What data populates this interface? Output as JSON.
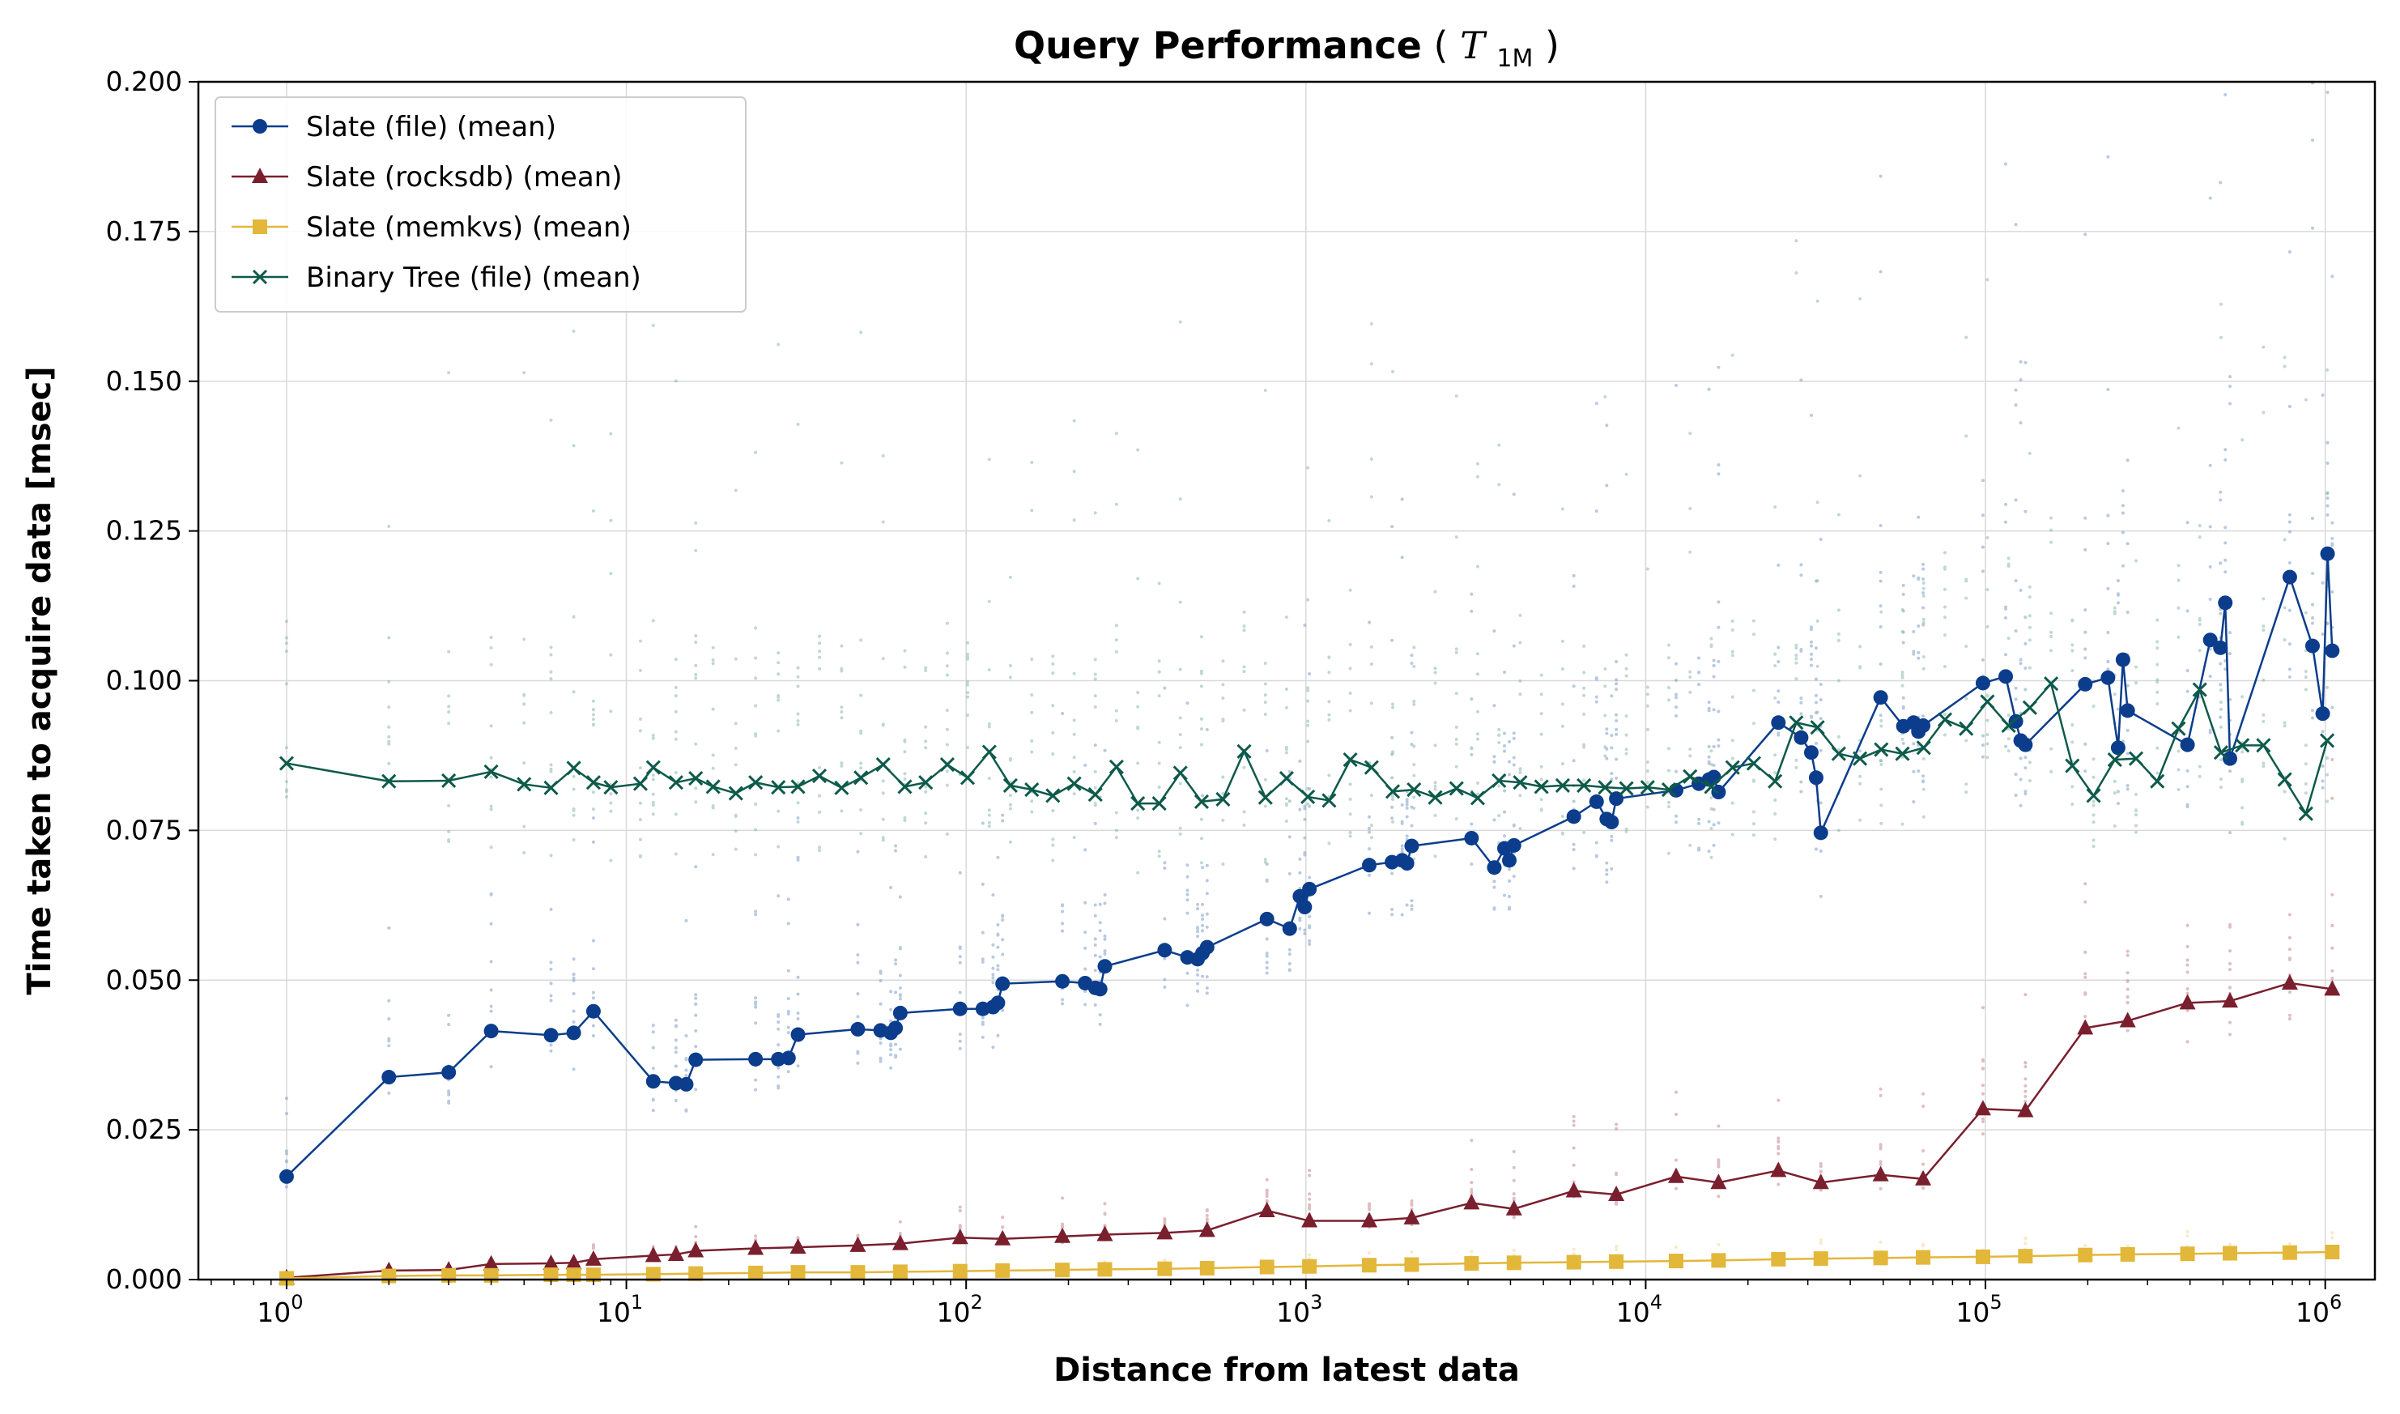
{
  "chart_data": {
    "type": "line",
    "title": "Query Performance",
    "title_math": "T",
    "title_math_sub": "1M",
    "xlabel": "Distance from latest data",
    "ylabel": "Time taken to acquire data [msec]",
    "xscale": "log",
    "xlim": [
      0.55,
      1400000
    ],
    "ylim": [
      0,
      0.2
    ],
    "x_tick_labels": [
      "10",
      "10",
      "10",
      "10",
      "10",
      "10",
      "10"
    ],
    "x_tick_exponents": [
      "0",
      "1",
      "2",
      "3",
      "4",
      "5",
      "6"
    ],
    "y_ticks": [
      "0.000",
      "0.025",
      "0.050",
      "0.075",
      "0.100",
      "0.125",
      "0.150",
      "0.175",
      "0.200"
    ],
    "grid": true,
    "legend_position": "top-left",
    "series": [
      {
        "name": "Slate (file) (mean)",
        "color": "#0b3d8c",
        "scatter_color": "#7f9fc8",
        "marker": "circle",
        "x": [
          1,
          2,
          3,
          4,
          6,
          7,
          8,
          12,
          14,
          15,
          16,
          24,
          28,
          30,
          32,
          48,
          56,
          60,
          62,
          64,
          96,
          112,
          120,
          124,
          128,
          192,
          224,
          240,
          248,
          256,
          384,
          448,
          480,
          496,
          512,
          768,
          896,
          960,
          992,
          1024,
          1536,
          1792,
          1920,
          1984,
          2048,
          3072,
          3584,
          3840,
          3968,
          4096,
          6144,
          7168,
          7680,
          7936,
          8192,
          12288,
          14336,
          15360,
          15872,
          16384,
          24576,
          28672,
          30720,
          31744,
          32768,
          49152,
          57344,
          61440,
          63488,
          65536,
          98304,
          114688,
          122880,
          126976,
          131072,
          196608,
          229376,
          245760,
          253952,
          262144,
          393216,
          458752,
          491520,
          507904,
          524288,
          786432,
          917504,
          983040,
          1015808,
          1048576
        ],
        "y": [
          0.0172,
          0.0338,
          0.0346,
          0.0415,
          0.0408,
          0.0412,
          0.0448,
          0.0331,
          0.0328,
          0.0326,
          0.0367,
          0.0368,
          0.0368,
          0.037,
          0.0409,
          0.0418,
          0.0416,
          0.0412,
          0.042,
          0.0445,
          0.0452,
          0.0452,
          0.0455,
          0.0462,
          0.0494,
          0.0498,
          0.0495,
          0.0487,
          0.0485,
          0.0523,
          0.055,
          0.0538,
          0.0535,
          0.0545,
          0.0555,
          0.0602,
          0.0586,
          0.064,
          0.0622,
          0.0652,
          0.0692,
          0.0697,
          0.07,
          0.0695,
          0.0724,
          0.0737,
          0.0688,
          0.072,
          0.07,
          0.0725,
          0.0773,
          0.0798,
          0.0769,
          0.0764,
          0.0803,
          0.0817,
          0.0828,
          0.0835,
          0.0839,
          0.0814,
          0.093,
          0.0905,
          0.088,
          0.0838,
          0.0746,
          0.0972,
          0.0924,
          0.093,
          0.0915,
          0.0925,
          0.0996,
          0.1007,
          0.0932,
          0.09,
          0.0893,
          0.0994,
          0.1005,
          0.0888,
          0.1035,
          0.095,
          0.0893,
          0.1068,
          0.1055,
          0.113,
          0.087,
          0.1173,
          0.1058,
          0.0945,
          0.1212,
          0.105
        ]
      },
      {
        "name": "Slate (rocksdb) (mean)",
        "color": "#7a1f2e",
        "scatter_color": "#c48a92",
        "marker": "triangle",
        "x": [
          1,
          2,
          3,
          4,
          6,
          7,
          8,
          12,
          14,
          16,
          24,
          32,
          48,
          64,
          96,
          128,
          192,
          256,
          384,
          512,
          768,
          1024,
          1536,
          2048,
          3072,
          4096,
          6144,
          8192,
          12288,
          16384,
          24576,
          32768,
          49152,
          65536,
          98304,
          131072,
          196608,
          262144,
          393216,
          524288,
          786432,
          1048576
        ],
        "y": [
          0.0003,
          0.0015,
          0.0016,
          0.0026,
          0.0027,
          0.0028,
          0.0034,
          0.004,
          0.0042,
          0.0048,
          0.0052,
          0.0054,
          0.0057,
          0.006,
          0.007,
          0.0068,
          0.0072,
          0.0075,
          0.0078,
          0.0082,
          0.0115,
          0.0098,
          0.0098,
          0.0103,
          0.0128,
          0.0118,
          0.0148,
          0.0142,
          0.0172,
          0.0162,
          0.0182,
          0.0162,
          0.0175,
          0.0168,
          0.0285,
          0.0282,
          0.042,
          0.0432,
          0.0462,
          0.0465,
          0.0495,
          0.0485
        ]
      },
      {
        "name": "Slate (memkvs) (mean)",
        "color": "#e3b73a",
        "scatter_color": "#f0d99a",
        "marker": "square",
        "x": [
          1,
          2,
          3,
          4,
          6,
          7,
          8,
          12,
          16,
          24,
          32,
          48,
          64,
          96,
          128,
          192,
          256,
          384,
          512,
          768,
          1024,
          1536,
          2048,
          3072,
          4096,
          6144,
          8192,
          12288,
          16384,
          24576,
          32768,
          49152,
          65536,
          98304,
          131072,
          196608,
          262144,
          393216,
          524288,
          786432,
          1048576
        ],
        "y": [
          0.0002,
          0.0006,
          0.0007,
          0.0007,
          0.0008,
          0.0008,
          0.0008,
          0.0009,
          0.001,
          0.0011,
          0.0012,
          0.0012,
          0.0013,
          0.0014,
          0.0015,
          0.0016,
          0.0017,
          0.0018,
          0.0019,
          0.0021,
          0.0022,
          0.0024,
          0.0025,
          0.0027,
          0.0028,
          0.0029,
          0.003,
          0.0031,
          0.0032,
          0.0034,
          0.0035,
          0.0036,
          0.0037,
          0.0038,
          0.0039,
          0.0041,
          0.0042,
          0.0043,
          0.0044,
          0.0045,
          0.0046
        ]
      },
      {
        "name": "Binary Tree (file) (mean)",
        "color": "#0d5a4a",
        "scatter_color": "#8fb9ad",
        "marker": "x",
        "x": [
          1,
          2,
          3,
          4,
          5,
          6,
          7,
          8,
          9,
          11,
          12,
          14,
          16,
          18,
          21,
          24,
          28,
          32,
          37,
          43,
          49,
          57,
          66,
          76,
          88,
          101,
          117,
          135,
          156,
          180,
          208,
          240,
          277,
          320,
          370,
          427,
          493,
          570,
          658,
          760,
          877,
          1013,
          1170,
          1351,
          1560,
          1801,
          2080,
          2402,
          2774,
          3203,
          3699,
          4272,
          4933,
          5697,
          6579,
          7597,
          8773,
          10131,
          11699,
          13510,
          15601,
          18016,
          20805,
          24025,
          27743,
          32038,
          36997,
          42723,
          49335,
          56971,
          65789,
          75972,
          87731,
          101310,
          116991,
          135099,
          156009,
          180157,
          208041,
          240242,
          277427,
          320367,
          369954,
          427216,
          493340,
          569700,
          657876,
          759702,
          877288,
          1013080
        ],
        "y": [
          0.0862,
          0.0832,
          0.0833,
          0.0848,
          0.0827,
          0.0821,
          0.0854,
          0.083,
          0.0822,
          0.0828,
          0.0855,
          0.083,
          0.0837,
          0.0823,
          0.0812,
          0.083,
          0.0822,
          0.0823,
          0.0841,
          0.0821,
          0.0838,
          0.086,
          0.0823,
          0.083,
          0.086,
          0.0838,
          0.0881,
          0.0825,
          0.0818,
          0.0808,
          0.0828,
          0.081,
          0.0856,
          0.0795,
          0.0795,
          0.0846,
          0.0798,
          0.0802,
          0.0882,
          0.0805,
          0.0837,
          0.0806,
          0.08,
          0.0868,
          0.0855,
          0.0815,
          0.0818,
          0.0805,
          0.082,
          0.0804,
          0.0833,
          0.083,
          0.0823,
          0.0825,
          0.0825,
          0.0822,
          0.082,
          0.0822,
          0.0818,
          0.084,
          0.0823,
          0.0855,
          0.0862,
          0.0832,
          0.093,
          0.0922,
          0.0878,
          0.087,
          0.0885,
          0.0878,
          0.0888,
          0.0935,
          0.092,
          0.0965,
          0.0925,
          0.0955,
          0.0995,
          0.0858,
          0.0808,
          0.0868,
          0.087,
          0.0832,
          0.092,
          0.0985,
          0.088,
          0.0892,
          0.0892,
          0.0835,
          0.0778,
          0.09
        ]
      }
    ]
  }
}
